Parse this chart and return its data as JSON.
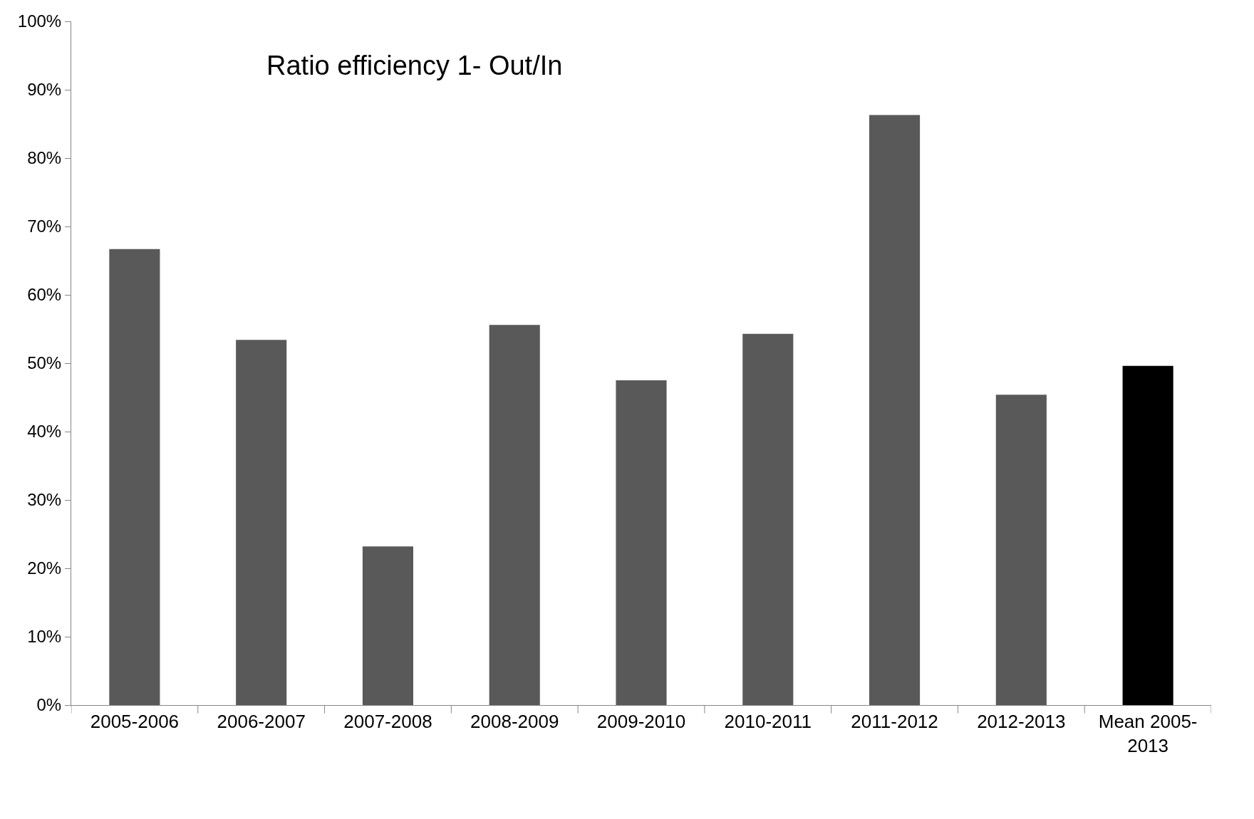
{
  "chart_data": {
    "type": "bar",
    "title": "Ratio efficiency 1- Out/In",
    "categories": [
      "2005-2006",
      "2006-2007",
      "2007-2008",
      "2008-2009",
      "2009-2010",
      "2010-2011",
      "2011-2012",
      "2012-2013",
      "Mean 2005-2013"
    ],
    "values": [
      66.7,
      53.4,
      23.2,
      55.6,
      47.5,
      54.3,
      86.3,
      45.4,
      49.6
    ],
    "colors": [
      "#595959",
      "#595959",
      "#595959",
      "#595959",
      "#595959",
      "#595959",
      "#595959",
      "#595959",
      "#000000"
    ],
    "ylim": [
      0,
      100
    ],
    "yticks": [
      {
        "value": 0,
        "label": "0%"
      },
      {
        "value": 10,
        "label": "10%"
      },
      {
        "value": 20,
        "label": "20%"
      },
      {
        "value": 30,
        "label": "30%"
      },
      {
        "value": 40,
        "label": "40%"
      },
      {
        "value": 50,
        "label": "50%"
      },
      {
        "value": 60,
        "label": "60%"
      },
      {
        "value": 70,
        "label": "70%"
      },
      {
        "value": 80,
        "label": "80%"
      },
      {
        "value": 90,
        "label": "90%"
      },
      {
        "value": 100,
        "label": "100%"
      }
    ]
  }
}
